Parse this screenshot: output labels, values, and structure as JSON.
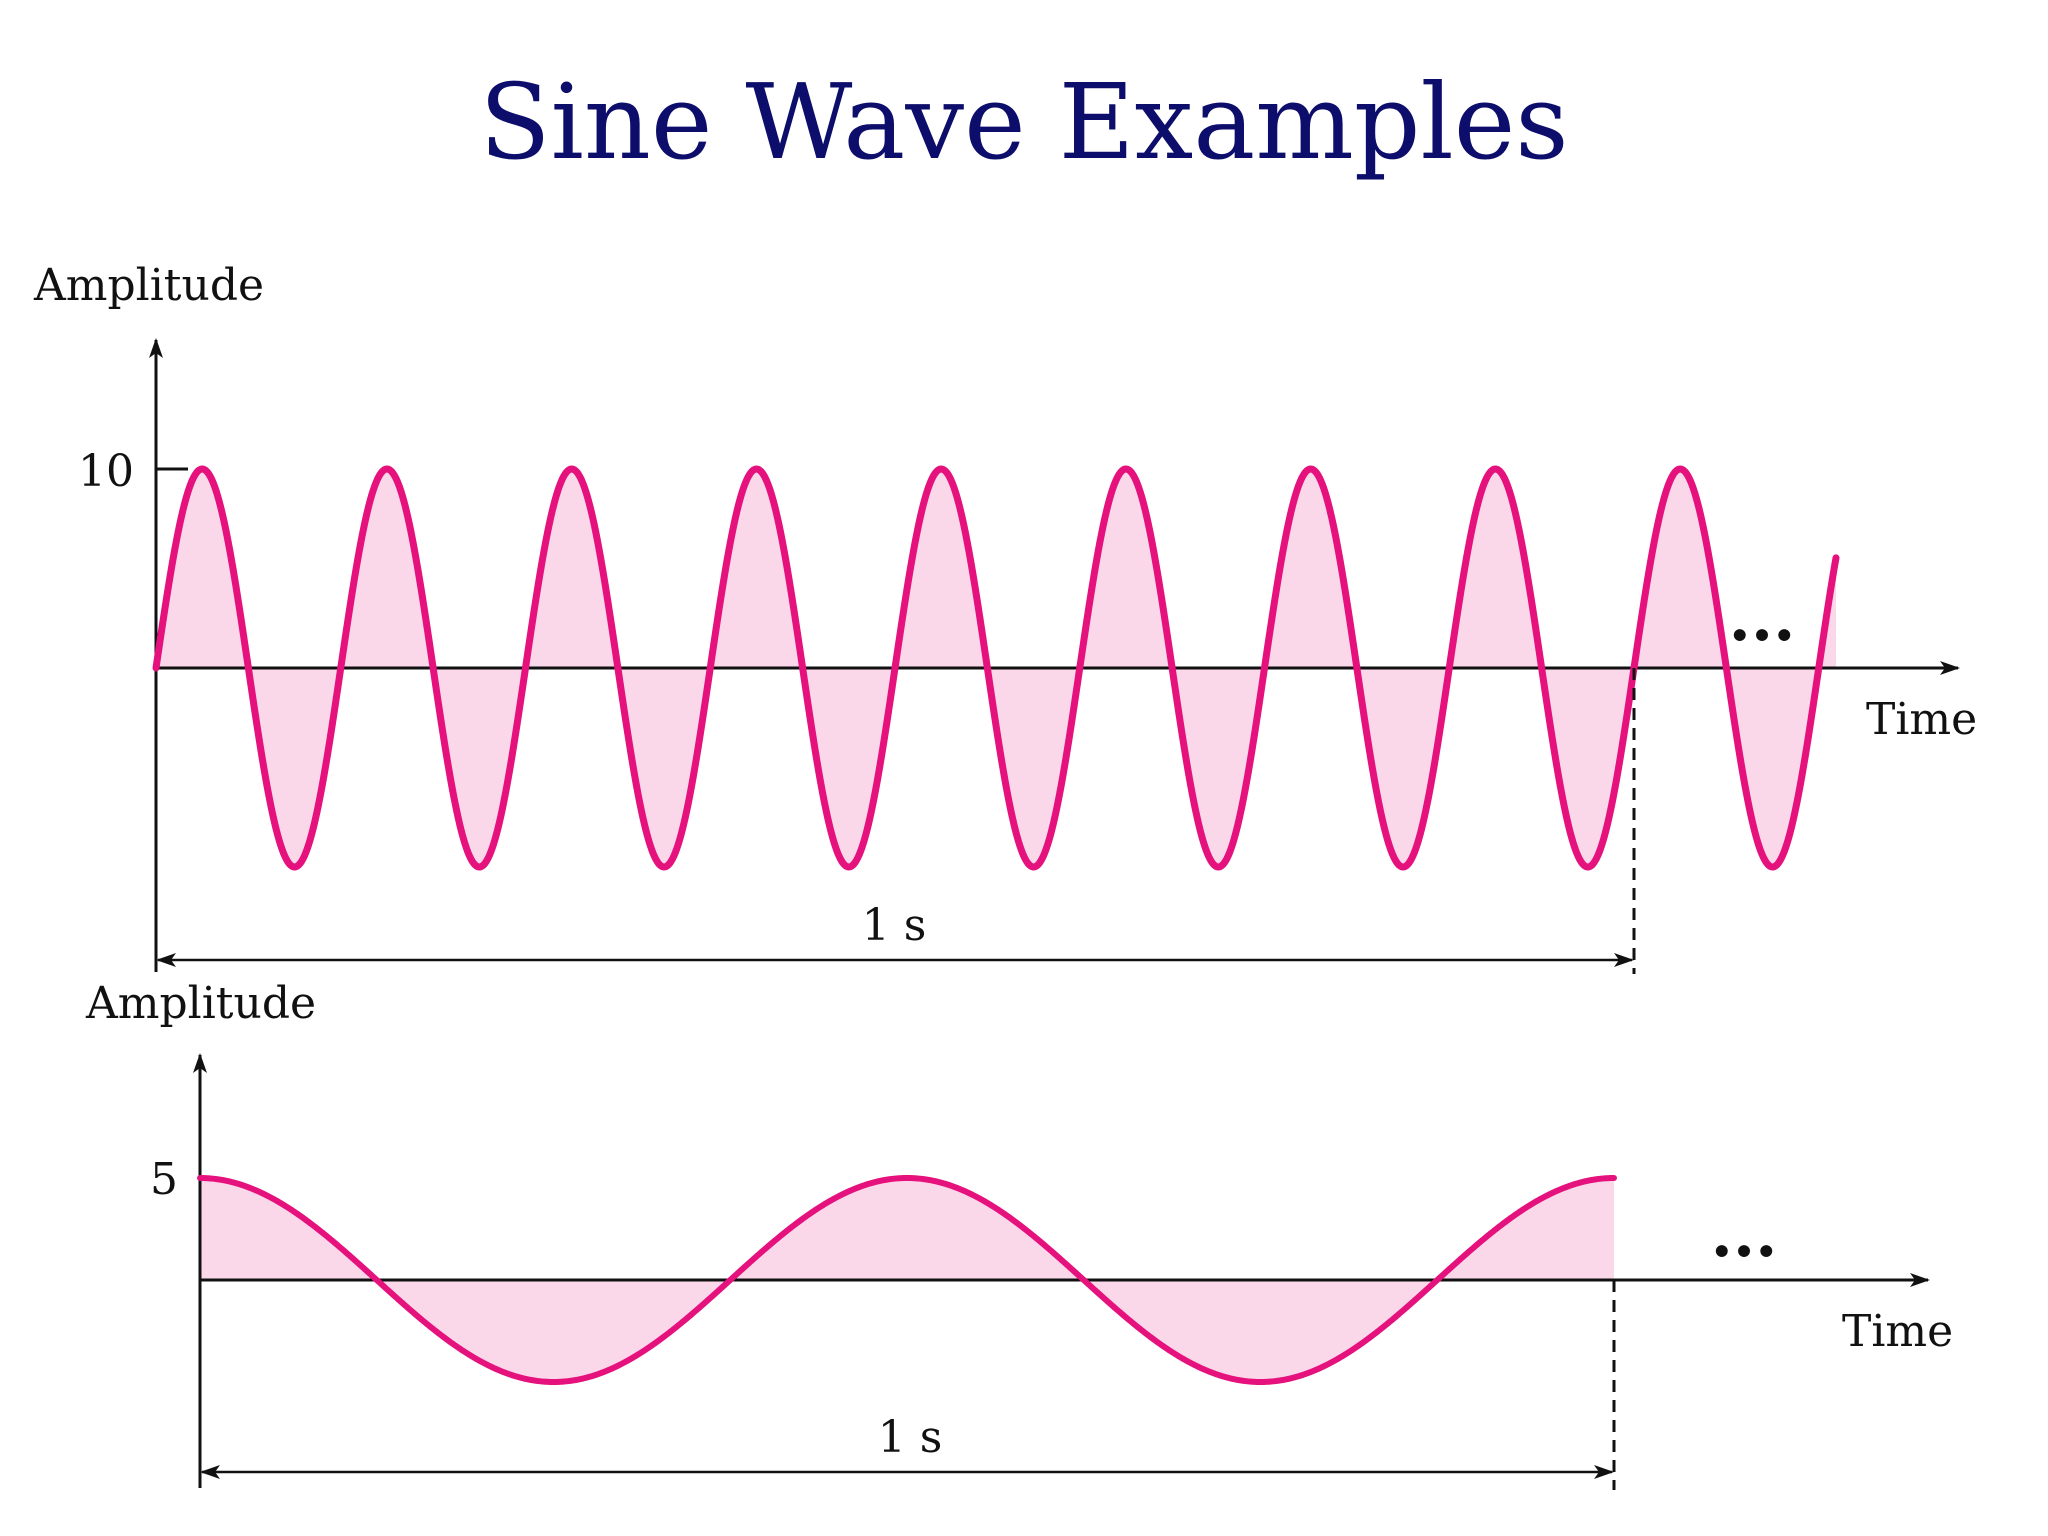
{
  "title": "Sine Wave Examples",
  "colors": {
    "wave": "#e5117c",
    "fill": "#fbd7ea",
    "axis": "#111111",
    "title": "#0d0d6b"
  },
  "chart_data": [
    {
      "type": "line",
      "ylabel": "Amplitude",
      "xlabel": "Time",
      "function": "sine",
      "amplitude": 10,
      "frequency_hz": 8,
      "phase": "sin",
      "peak_tick_label": "10",
      "duration_label": "1 s",
      "continuation": "...",
      "shaded_area": true
    },
    {
      "type": "line",
      "ylabel": "Amplitude",
      "xlabel": "Time",
      "function": "cosine",
      "amplitude": 5,
      "frequency_hz": 2,
      "phase": "cos",
      "peak_tick_label": "5",
      "duration_label": "1 s",
      "continuation": "...",
      "shaded_area": true
    }
  ]
}
